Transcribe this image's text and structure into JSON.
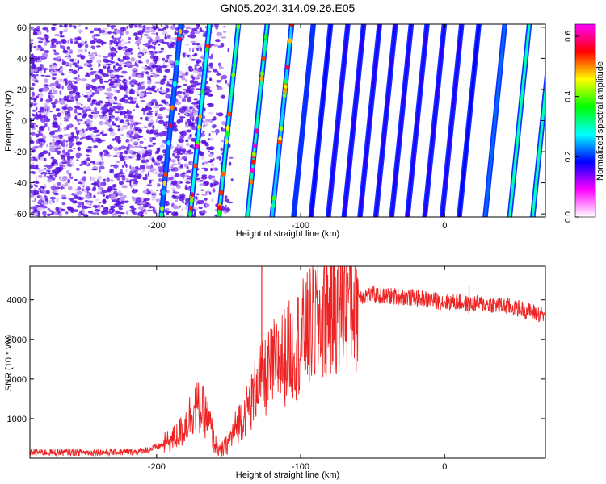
{
  "title": "GN05.2024.314.09.26.E05",
  "chart_data": [
    {
      "type": "heatmap",
      "xlabel": "Height of straight line (km)",
      "ylabel": "Frequency (Hz)",
      "xlim": [
        -288,
        70
      ],
      "ylim": [
        -62,
        62
      ],
      "xticks": [
        -200,
        -100,
        0
      ],
      "xtick_labels": [
        "-200",
        "-100",
        "0"
      ],
      "yticks": [
        -60,
        -40,
        -20,
        0,
        20,
        40,
        60
      ],
      "ytick_labels": [
        "-60",
        "-40",
        "-20",
        "0",
        "20",
        "40",
        "60"
      ],
      "colorbar": {
        "label": "Normalized spectral amplitude",
        "range": [
          0,
          0.64
        ],
        "ticks": [
          0,
          0.2,
          0.4,
          0.6
        ],
        "tick_labels": [
          "0.0",
          "0.2",
          "0.4",
          "0.6"
        ],
        "colormap": [
          "#ffffff",
          "#ff00ff",
          "#0000ff",
          "#00ffff",
          "#00ff00",
          "#ffff00",
          "#ff0000",
          "#ff00ff"
        ]
      },
      "noise_region_x": [
        -288,
        -170
      ],
      "line_slope_km_per_hz": 0.11,
      "lines": [
        {
          "x_at_f0": -190,
          "amplitude": 0.22
        },
        {
          "x_at_f0": -170,
          "amplitude": 0.28
        },
        {
          "x_at_f0": -150,
          "amplitude": 0.3
        },
        {
          "x_at_f0": -130,
          "amplitude": 0.3
        },
        {
          "x_at_f0": -113,
          "amplitude": 0.26
        },
        {
          "x_at_f0": -98,
          "amplitude": 0.2
        },
        {
          "x_at_f0": -86,
          "amplitude": 0.18
        },
        {
          "x_at_f0": -74,
          "amplitude": 0.17
        },
        {
          "x_at_f0": -63,
          "amplitude": 0.17
        },
        {
          "x_at_f0": -52,
          "amplitude": 0.17
        },
        {
          "x_at_f0": -41,
          "amplitude": 0.17
        },
        {
          "x_at_f0": -30,
          "amplitude": 0.17
        },
        {
          "x_at_f0": -19,
          "amplitude": 0.17
        },
        {
          "x_at_f0": -7,
          "amplitude": 0.17
        },
        {
          "x_at_f0": 5,
          "amplitude": 0.17
        },
        {
          "x_at_f0": 17,
          "amplitude": 0.18
        },
        {
          "x_at_f0": 35,
          "amplitude": 0.22
        },
        {
          "x_at_f0": 52,
          "amplitude": 0.3
        },
        {
          "x_at_f0": 68,
          "amplitude": 0.3
        }
      ]
    },
    {
      "type": "line",
      "xlabel": "Height of straight line (km)",
      "ylabel": "SNR (10 * v/v)",
      "xlim": [
        -288,
        70
      ],
      "ylim": [
        0,
        4850
      ],
      "xticks": [
        -200,
        -100,
        0
      ],
      "xtick_labels": [
        "-200",
        "-100",
        "0"
      ],
      "yticks": [
        1000,
        2000,
        3000,
        4000
      ],
      "ytick_labels": [
        "1000",
        "2000",
        "3000",
        "4000"
      ],
      "series": [
        {
          "color": "#ee2222",
          "x": [
            -288,
            -270,
            -250,
            -230,
            -215,
            -205,
            -195,
            -188,
            -182,
            -178,
            -174,
            -170,
            -166,
            -163,
            -160,
            -156,
            -152,
            -148,
            -144,
            -140,
            -136,
            -132,
            -130,
            -128,
            -125,
            -120,
            -115,
            -110,
            -105,
            -100,
            -95,
            -90,
            -85,
            -80,
            -75,
            -70,
            -65,
            -60,
            -55,
            -50,
            -45,
            -40,
            -30,
            -20,
            -10,
            0,
            10,
            15,
            17,
            20,
            30,
            40,
            50,
            60,
            70
          ],
          "y": [
            150,
            150,
            150,
            150,
            160,
            220,
            350,
            500,
            700,
            1000,
            1300,
            1250,
            1100,
            850,
            400,
            150,
            300,
            550,
            850,
            1100,
            1300,
            1600,
            2200,
            1900,
            2000,
            2300,
            2500,
            2600,
            2800,
            3000,
            3200,
            3400,
            3650,
            3800,
            3950,
            4050,
            4100,
            4100,
            4120,
            4130,
            4100,
            4100,
            4080,
            4050,
            4000,
            3950,
            3950,
            3900,
            3850,
            3900,
            3900,
            3850,
            3800,
            3700,
            3600
          ],
          "spikes": [
            {
              "x": -127,
              "y": 4850
            },
            {
              "x": 17,
              "y": 4350
            }
          ]
        }
      ]
    }
  ]
}
